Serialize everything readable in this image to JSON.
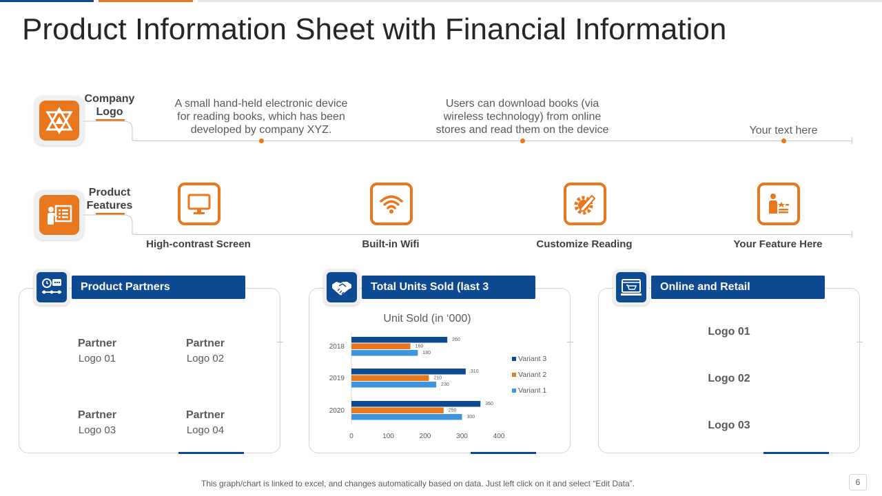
{
  "title": "Product Information Sheet with Financial Information",
  "company": {
    "label": "Company Logo",
    "descriptions": [
      "A small hand-held electronic device for reading books, which has been developed by company XYZ.",
      "Users can download books (via wireless technology) from online stores and read them on the device",
      "Your text here"
    ]
  },
  "features": {
    "label": "Product Features",
    "items": [
      {
        "label": "High-contrast Screen",
        "icon": "monitor-icon"
      },
      {
        "label": "Built-in Wifi",
        "icon": "wifi-icon"
      },
      {
        "label": "Customize Reading",
        "icon": "gear-pencil-icon"
      },
      {
        "label": "Your Feature Here",
        "icon": "person-list-icon"
      }
    ]
  },
  "partners": {
    "header": "Product Partners",
    "items": [
      {
        "name": "Partner",
        "logo": "Logo 01"
      },
      {
        "name": "Partner",
        "logo": "Logo 02"
      },
      {
        "name": "Partner",
        "logo": "Logo 03"
      },
      {
        "name": "Partner",
        "logo": "Logo 04"
      }
    ]
  },
  "units": {
    "header": "Total Units Sold (last 3"
  },
  "retail": {
    "header": "Online and Retail",
    "logos": [
      "Logo 01",
      "Logo 02",
      "Logo 03"
    ]
  },
  "chart_data": {
    "type": "bar",
    "orientation": "horizontal",
    "title": "Unit Sold (in ‘000)",
    "categories": [
      "2018",
      "2019",
      "2020"
    ],
    "series": [
      {
        "name": "Variant 3",
        "values": [
          260,
          310,
          350
        ],
        "color": "#0e4a92"
      },
      {
        "name": "Variant 2",
        "values": [
          160,
          210,
          250
        ],
        "color": "#e8771e"
      },
      {
        "name": "Variant 1",
        "values": [
          180,
          230,
          300
        ],
        "color": "#3d95e0"
      }
    ],
    "xlim": [
      0,
      400
    ],
    "xticks": [
      "0",
      "100",
      "200",
      "300",
      "400"
    ],
    "grid": false,
    "legend": "right"
  },
  "footnote": "This graph/chart is linked to excel, and changes automatically based on data. Just left click on it and select “Edit Data”.",
  "page_number": "6"
}
